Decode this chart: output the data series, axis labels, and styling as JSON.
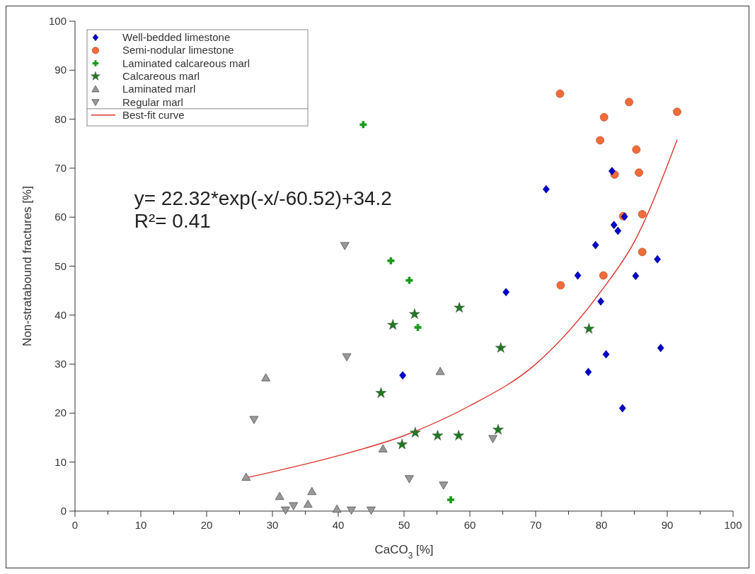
{
  "chart_data": {
    "type": "scatter",
    "xlabel": "CaCO$_{3}$ [%]",
    "ylabel": "Non-stratabound fractures [%]",
    "xlim": [
      0,
      100
    ],
    "ylim": [
      0,
      100
    ],
    "xticks": [
      0,
      {
        "value": 5,
        "label": null
      },
      10,
      {
        "value": 15,
        "label": null
      },
      20,
      {
        "value": 25,
        "label": null
      },
      30,
      {
        "value": 35,
        "label": null
      },
      40,
      {
        "value": 45,
        "label": null
      },
      50,
      {
        "value": 55,
        "label": null
      },
      60,
      {
        "value": 65,
        "label": null
      },
      70,
      {
        "value": 75,
        "label": null
      },
      80,
      {
        "value": 85,
        "label": null
      },
      90,
      {
        "value": 95,
        "label": null
      },
      100
    ],
    "yticks": [
      0,
      10,
      20,
      30,
      40,
      50,
      60,
      70,
      80,
      90,
      100
    ],
    "grid": false,
    "legend": "top left",
    "annotations": [
      "y= 22.32*exp(-x/-60.52)+34.2",
      "R²= 0.41"
    ],
    "series": [
      {
        "name": "Well-bedded limestone",
        "color": "#0000cc",
        "marker": "diamond",
        "x": [
          49.8,
          65.5,
          71.6,
          76.4,
          78,
          79.1,
          79.9,
          80.7,
          81.6,
          81.9,
          82.5,
          83.2,
          83.5,
          85.2,
          88.5,
          89
        ],
        "values": [
          27.7,
          44.7,
          65.7,
          48.1,
          28.4,
          54.3,
          42.8,
          32,
          69.4,
          58.4,
          57.2,
          21,
          60.1,
          48,
          51.4,
          33.3
        ]
      },
      {
        "name": "Semi-nodular limestone",
        "color": "#f26b3a",
        "marker": "circle",
        "x": [
          73.7,
          73.8,
          79.8,
          80.4,
          80.3,
          82,
          83.3,
          84.2,
          85.3,
          85.7,
          86.2,
          86.2,
          91.5
        ],
        "values": [
          85.2,
          46.1,
          75.7,
          80.4,
          48.1,
          68.7,
          60.2,
          83.5,
          73.8,
          69.1,
          60.6,
          52.9,
          81.5
        ]
      },
      {
        "name": "Laminated calcareous marl",
        "color": "#1a9a1a",
        "marker": "cross",
        "x": [
          43.8,
          48,
          50.8,
          52.1,
          57.1
        ],
        "values": [
          78.9,
          51.1,
          47.1,
          37.5,
          2.3
        ]
      },
      {
        "name": "Calcareous marl",
        "color": "#1e7a1e",
        "marker": "star",
        "x": [
          46.5,
          48.3,
          49.7,
          51.6,
          51.7,
          55.1,
          58.4,
          58.3,
          64.3,
          64.7,
          78.1
        ],
        "values": [
          24.1,
          38,
          13.6,
          40.2,
          16,
          15.4,
          41.5,
          15.4,
          16.6,
          33.3,
          37.2
        ]
      },
      {
        "name": "Laminated marl",
        "color": "#999999",
        "marker": "triangle",
        "x": [
          26,
          29,
          31.1,
          35.4,
          36,
          39.8,
          46.8,
          55.5
        ],
        "values": [
          6.9,
          27.2,
          3,
          1.4,
          4,
          0.4,
          12.7,
          28.5
        ]
      },
      {
        "name": "Regular marl",
        "color": "#999999",
        "marker": "triangle-down",
        "x": [
          27.2,
          32,
          33.2,
          41,
          41.3,
          42,
          45,
          50.8,
          56,
          63.5
        ],
        "values": [
          18.7,
          0.2,
          1.1,
          54.2,
          31.5,
          0.2,
          0.2,
          6.6,
          5.3,
          14.8
        ]
      },
      {
        "name": "Best-fit curve",
        "type": "line",
        "color": "#d9342b",
        "marker": "none",
        "line_style": "solid",
        "x": [
          26,
          30,
          40,
          50,
          60,
          70,
          80,
          85,
          91.5
        ],
        "values": [
          6.8,
          8,
          11.3,
          15.4,
          21.5,
          30,
          45,
          55,
          75.8
        ]
      }
    ]
  }
}
